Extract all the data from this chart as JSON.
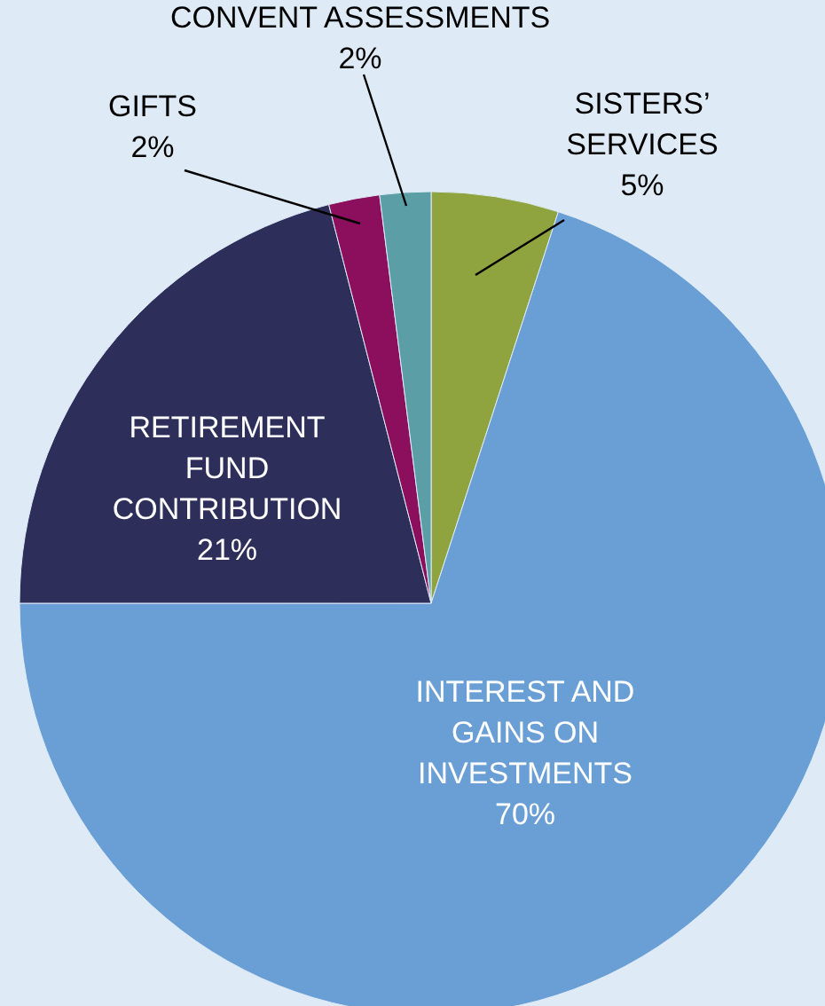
{
  "chart_data": {
    "type": "pie",
    "categories": [
      "SISTERS’ SERVICES",
      "INTEREST AND GAINS ON INVESTMENTS",
      "RETIREMENT FUND CONTRIBUTION",
      "GIFTS",
      "CONVENT ASSESSMENTS"
    ],
    "values": [
      5,
      70,
      21,
      2,
      2
    ],
    "colors": [
      "#8fa33f",
      "#6a9fd6",
      "#2e2e5a",
      "#8c0f5e",
      "#5b9ea6"
    ],
    "value_labels": [
      "5%",
      "70%",
      "21%",
      "2%",
      "2%"
    ]
  }
}
